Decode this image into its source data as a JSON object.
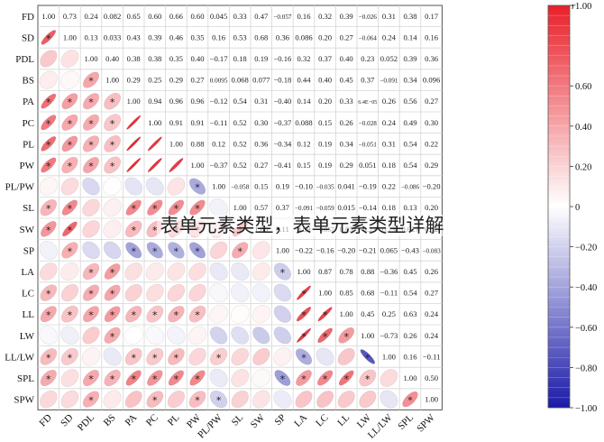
{
  "chart_data": {
    "type": "heatmap",
    "variables": [
      "FD",
      "SD",
      "PDL",
      "BS",
      "PA",
      "PC",
      "PL",
      "PW",
      "PL/PW",
      "SL",
      "SW",
      "SP",
      "LA",
      "LC",
      "LL",
      "LW",
      "LL/LW",
      "SPL",
      "SPW"
    ],
    "upper": [
      [
        "1.00",
        "0.73",
        "0.24",
        "0.082",
        "0.65",
        "0.60",
        "0.66",
        "0.60",
        "0.045",
        "0.33",
        "0.47",
        "−0.057",
        "0.16",
        "0.32",
        "0.39",
        "−0.026",
        "0.31",
        "0.38",
        "0.17"
      ],
      [
        "",
        "1.00",
        "0.13",
        "0.033",
        "0.43",
        "0.39",
        "0.46",
        "0.35",
        "0.16",
        "0.53",
        "0.68",
        "0.36",
        "0.086",
        "0.20",
        "0.27",
        "−0.064",
        "0.24",
        "0.14",
        "0.16"
      ],
      [
        "",
        "",
        "1.00",
        "0.40",
        "0.38",
        "0.38",
        "0.35",
        "0.40",
        "−0.17",
        "0.18",
        "0.19",
        "−0.16",
        "0.32",
        "0.37",
        "0.40",
        "0.23",
        "0.052",
        "0.39",
        "0.36"
      ],
      [
        "",
        "",
        "",
        "1.00",
        "0.29",
        "0.25",
        "0.29",
        "0.27",
        "0.0095",
        "0.068",
        "0.077",
        "−0.18",
        "0.44",
        "0.40",
        "0.45",
        "0.37",
        "−0.091",
        "0.34",
        "0.096"
      ],
      [
        "",
        "",
        "",
        "",
        "1.00",
        "0.94",
        "0.96",
        "0.96",
        "−0.12",
        "0.54",
        "0.31",
        "−0.40",
        "0.14",
        "0.20",
        "0.33",
        "6.4E−05",
        "0.26",
        "0.56",
        "0.27"
      ],
      [
        "",
        "",
        "",
        "",
        "",
        "1.00",
        "0.91",
        "0.91",
        "−0.11",
        "0.52",
        "0.30",
        "−0.37",
        "0.088",
        "0.15",
        "0.26",
        "−0.028",
        "0.24",
        "0.49",
        "0.30"
      ],
      [
        "",
        "",
        "",
        "",
        "",
        "",
        "1.00",
        "0.88",
        "0.12",
        "0.52",
        "0.36",
        "−0.34",
        "0.12",
        "0.19",
        "0.34",
        "−0.051",
        "0.31",
        "0.54",
        "0.22"
      ],
      [
        "",
        "",
        "",
        "",
        "",
        "",
        "",
        "1.00",
        "−0.37",
        "0.52",
        "0.27",
        "−0.41",
        "0.15",
        "0.19",
        "0.29",
        "0.051",
        "0.18",
        "0.54",
        "0.29"
      ],
      [
        "",
        "",
        "",
        "",
        "",
        "",
        "",
        "",
        "1.00",
        "−0.058",
        "0.15",
        "0.19",
        "−0.10",
        "−0.035",
        "0.041",
        "−0.19",
        "0.22",
        "−0.086",
        "−0.20"
      ],
      [
        "",
        "",
        "",
        "",
        "",
        "",
        "",
        "",
        "",
        "1.00",
        "0.57",
        "0.37",
        "−0.091",
        "−0.059",
        "0.015",
        "−0.14",
        "0.18",
        "0.13",
        "0.20"
      ],
      [
        "",
        "",
        "",
        "",
        "",
        "",
        "",
        "",
        "",
        "",
        "1.00",
        "0.11",
        "0.09",
        "−0.057",
        "0.05",
        "−0.23",
        "0.23",
        "0.027",
        "0.12"
      ],
      [
        "",
        "",
        "",
        "",
        "",
        "",
        "",
        "",
        "",
        "",
        "",
        "1.00",
        "−0.22",
        "−0.16",
        "−0.20",
        "−0.21",
        "0.065",
        "−0.43",
        "−0.083"
      ],
      [
        "",
        "",
        "",
        "",
        "",
        "",
        "",
        "",
        "",
        "",
        "",
        "",
        "1.00",
        "0.87",
        "0.78",
        "0.88",
        "−0.36",
        "0.45",
        "0.26"
      ],
      [
        "",
        "",
        "",
        "",
        "",
        "",
        "",
        "",
        "",
        "",
        "",
        "",
        "",
        "1.00",
        "0.85",
        "0.68",
        "−0.11",
        "0.54",
        "0.27"
      ],
      [
        "",
        "",
        "",
        "",
        "",
        "",
        "",
        "",
        "",
        "",
        "",
        "",
        "",
        "",
        "1.00",
        "0.45",
        "0.25",
        "0.63",
        "0.24"
      ],
      [
        "",
        "",
        "",
        "",
        "",
        "",
        "",
        "",
        "",
        "",
        "",
        "",
        "",
        "",
        "",
        "1.00",
        "−0.73",
        "0.26",
        "0.24"
      ],
      [
        "",
        "",
        "",
        "",
        "",
        "",
        "",
        "",
        "",
        "",
        "",
        "",
        "",
        "",
        "",
        "",
        "1.00",
        "0.16",
        "−0.11"
      ],
      [
        "",
        "",
        "",
        "",
        "",
        "",
        "",
        "",
        "",
        "",
        "",
        "",
        "",
        "",
        "",
        "",
        "",
        "1.00",
        "0.50"
      ],
      [
        "",
        "",
        "",
        "",
        "",
        "",
        "",
        "",
        "",
        "",
        "",
        "",
        "",
        "",
        "",
        "",
        "",
        "",
        "1.00"
      ]
    ],
    "significance_marker": "*",
    "significant": [
      [
        0,
        1
      ],
      [
        0,
        4
      ],
      [
        0,
        5
      ],
      [
        0,
        6
      ],
      [
        0,
        7
      ],
      [
        0,
        9
      ],
      [
        0,
        10
      ],
      [
        0,
        13
      ],
      [
        0,
        14
      ],
      [
        0,
        16
      ],
      [
        0,
        17
      ],
      [
        1,
        4
      ],
      [
        1,
        5
      ],
      [
        1,
        6
      ],
      [
        1,
        7
      ],
      [
        1,
        9
      ],
      [
        1,
        10
      ],
      [
        1,
        11
      ],
      [
        1,
        14
      ],
      [
        1,
        16
      ],
      [
        2,
        3
      ],
      [
        2,
        4
      ],
      [
        2,
        5
      ],
      [
        2,
        6
      ],
      [
        2,
        7
      ],
      [
        2,
        12
      ],
      [
        2,
        13
      ],
      [
        2,
        14
      ],
      [
        2,
        17
      ],
      [
        2,
        18
      ],
      [
        3,
        4
      ],
      [
        3,
        5
      ],
      [
        3,
        6
      ],
      [
        3,
        7
      ],
      [
        3,
        12
      ],
      [
        3,
        13
      ],
      [
        3,
        14
      ],
      [
        3,
        15
      ],
      [
        3,
        17
      ],
      [
        4,
        9
      ],
      [
        4,
        10
      ],
      [
        4,
        11
      ],
      [
        4,
        14
      ],
      [
        4,
        16
      ],
      [
        4,
        17
      ],
      [
        5,
        9
      ],
      [
        5,
        10
      ],
      [
        5,
        11
      ],
      [
        5,
        14
      ],
      [
        5,
        16
      ],
      [
        5,
        17
      ],
      [
        5,
        18
      ],
      [
        6,
        9
      ],
      [
        6,
        10
      ],
      [
        6,
        11
      ],
      [
        6,
        14
      ],
      [
        6,
        16
      ],
      [
        6,
        17
      ],
      [
        7,
        8
      ],
      [
        7,
        9
      ],
      [
        7,
        10
      ],
      [
        7,
        11
      ],
      [
        7,
        14
      ],
      [
        7,
        17
      ],
      [
        7,
        18
      ],
      [
        8,
        16
      ],
      [
        8,
        18
      ],
      [
        9,
        10
      ],
      [
        9,
        11
      ],
      [
        11,
        12
      ],
      [
        11,
        17
      ],
      [
        12,
        13
      ],
      [
        12,
        14
      ],
      [
        12,
        15
      ],
      [
        12,
        16
      ],
      [
        12,
        17
      ],
      [
        13,
        14
      ],
      [
        13,
        15
      ],
      [
        13,
        17
      ],
      [
        14,
        15
      ],
      [
        14,
        17
      ],
      [
        15,
        16
      ],
      [
        15,
        17
      ],
      [
        17,
        18
      ]
    ],
    "colorbar": {
      "title": "r",
      "ticks": [
        "1.00",
        "0.60",
        "0.40",
        "0.20",
        "0",
        "−0.20",
        "−0.40",
        "−0.60",
        "−0.80",
        "−1.00"
      ],
      "tick_values": [
        1.0,
        0.6,
        0.4,
        0.2,
        0,
        -0.2,
        -0.4,
        -0.6,
        -0.8,
        -1.0
      ],
      "range": [
        -1,
        1
      ],
      "positive_color": "#e8202a",
      "negative_color": "#1a1aa8",
      "zero_color": "#ffffff"
    }
  },
  "overlay_text": "表单元素类型，表单元素类型详解"
}
